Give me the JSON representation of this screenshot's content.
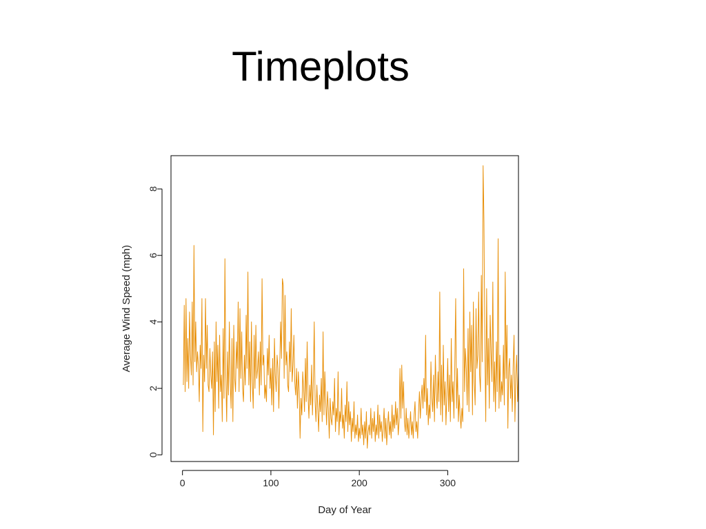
{
  "slide": {
    "title": "Timeplots"
  },
  "chart_data": {
    "type": "line",
    "title": "",
    "xlabel": "Day of Year",
    "ylabel": "Average Wind Speed (mph)",
    "xlim": [
      -13,
      380
    ],
    "ylim": [
      -0.2,
      9.0
    ],
    "xticks": [
      0,
      100,
      200,
      300
    ],
    "yticks": [
      0,
      2,
      4,
      6,
      8
    ],
    "grid": false,
    "legend": "none",
    "series_color": "#E8900A",
    "series": [
      {
        "x_start": 1,
        "values": [
          2.1,
          4.5,
          1.9,
          4.7,
          2.2,
          3.5,
          2.0,
          4.3,
          3.0,
          2.4,
          4.6,
          2.1,
          6.3,
          2.8,
          4.0,
          2.5,
          3.1,
          2.7,
          1.6,
          3.3,
          2.6,
          4.7,
          0.7,
          3.0,
          2.2,
          4.7,
          2.6,
          3.9,
          2.1,
          1.9,
          3.2,
          2.4,
          2.0,
          3.1,
          0.6,
          3.4,
          1.3,
          4.0,
          2.2,
          3.3,
          1.4,
          3.6,
          1.9,
          2.4,
          1.0,
          3.8,
          1.7,
          5.9,
          2.4,
          1.0,
          3.1,
          1.8,
          4.0,
          2.2,
          1.4,
          3.5,
          1.0,
          3.9,
          2.3,
          1.9,
          3.4,
          2.6,
          4.6,
          1.9,
          4.4,
          2.3,
          3.7,
          2.0,
          1.6,
          3.0,
          2.1,
          4.2,
          2.6,
          5.5,
          2.1,
          3.4,
          1.6,
          4.0,
          2.2,
          1.4,
          3.6,
          2.0,
          3.9,
          2.3,
          2.6,
          3.1,
          1.8,
          3.4,
          2.1,
          5.3,
          2.7,
          3.0,
          1.7,
          2.1,
          1.6,
          3.2,
          2.4,
          3.6,
          2.0,
          2.6,
          1.5,
          2.9,
          1.3,
          3.5,
          2.4,
          1.9,
          3.0,
          2.6,
          1.4,
          2.7,
          4.0,
          2.9,
          5.3,
          5.1,
          2.3,
          4.8,
          2.7,
          3.1,
          2.1,
          1.9,
          3.4,
          2.5,
          4.4,
          2.2,
          2.7,
          3.6,
          2.2,
          1.8,
          2.6,
          1.4,
          2.5,
          1.9,
          0.5,
          1.7,
          1.2,
          2.5,
          2.0,
          1.3,
          2.9,
          1.6,
          3.4,
          1.8,
          1.1,
          2.1,
          1.5,
          2.7,
          1.2,
          2.2,
          4.0,
          1.6,
          1.0,
          2.1,
          1.4,
          0.7,
          1.8,
          1.3,
          2.3,
          1.0,
          3.7,
          1.2,
          2.5,
          1.6,
          0.9,
          1.9,
          1.4,
          0.5,
          1.7,
          1.1,
          0.9,
          1.6,
          1.2,
          2.3,
          0.7,
          1.4,
          1.0,
          2.5,
          0.6,
          1.3,
          1.0,
          2.0,
          0.8,
          1.2,
          0.5,
          1.5,
          1.0,
          2.2,
          0.7,
          1.6,
          0.9,
          1.3,
          0.4,
          1.1,
          0.7,
          1.6,
          0.5,
          0.9,
          0.6,
          1.2,
          0.4,
          0.8,
          0.5,
          1.4,
          0.6,
          0.9,
          0.3,
          1.0,
          0.5,
          1.3,
          0.2,
          0.7,
          0.9,
          0.6,
          1.4,
          0.5,
          1.1,
          0.7,
          1.3,
          0.4,
          0.9,
          0.6,
          1.5,
          0.5,
          1.2,
          0.7,
          1.0,
          0.4,
          0.8,
          1.4,
          0.5,
          1.1,
          0.3,
          0.9,
          1.3,
          0.6,
          1.0,
          0.5,
          1.5,
          0.7,
          1.2,
          0.8,
          1.6,
          0.9,
          1.4,
          0.6,
          1.0,
          2.6,
          1.1,
          2.7,
          1.4,
          2.2,
          1.0,
          0.7,
          1.4,
          0.6,
          1.1,
          0.5,
          0.9,
          1.3,
          0.6,
          1.0,
          0.5,
          1.2,
          1.6,
          0.7,
          1.0,
          0.5,
          1.3,
          1.9,
          1.1,
          1.7,
          2.1,
          1.4,
          2.3,
          1.6,
          3.6,
          1.2,
          2.0,
          0.9,
          1.5,
          1.1,
          2.8,
          1.7,
          1.3,
          2.4,
          1.0,
          3.0,
          1.9,
          1.4,
          2.5,
          1.6,
          4.9,
          1.2,
          2.7,
          1.0,
          3.3,
          1.5,
          2.2,
          0.9,
          1.8,
          2.9,
          1.3,
          2.4,
          1.0,
          3.5,
          1.6,
          2.2,
          1.1,
          2.7,
          4.7,
          1.4,
          2.6,
          1.0,
          1.8,
          1.2,
          0.8,
          1.4,
          1.0,
          5.6,
          1.9,
          3.2,
          2.6,
          1.5,
          3.8,
          1.3,
          4.3,
          2.5,
          3.9,
          1.2,
          4.6,
          2.2,
          1.5,
          4.4,
          2.6,
          3.0,
          4.9,
          2.4,
          1.9,
          5.4,
          2.8,
          8.7,
          7.0,
          3.3,
          1.0,
          5.0,
          2.1,
          3.5,
          1.4,
          4.2,
          3.1,
          2.2,
          5.2,
          1.6,
          2.8,
          1.3,
          3.4,
          1.9,
          6.5,
          1.4,
          3.0,
          1.6,
          2.2,
          1.8,
          3.3,
          1.5,
          5.5,
          2.3,
          3.9,
          0.8,
          2.6,
          2.9,
          1.7,
          2.4,
          1.3,
          2.7,
          3.6,
          1.0,
          2.4,
          3.0,
          1.6,
          2.5
        ]
      }
    ]
  }
}
